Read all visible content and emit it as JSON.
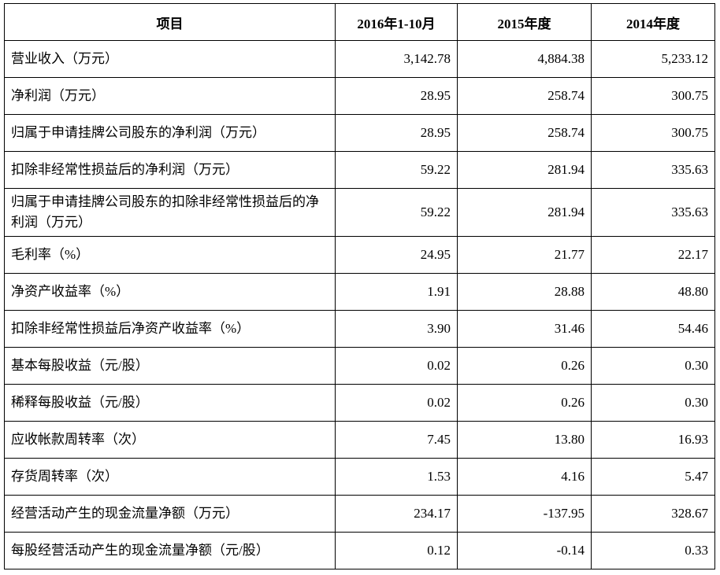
{
  "table": {
    "header": [
      "项目",
      "2016年1-10月",
      "2015年度",
      "2014年度"
    ],
    "rows": [
      [
        "营业收入（万元）",
        "3,142.78",
        "4,884.38",
        "5,233.12"
      ],
      [
        "净利润（万元）",
        "28.95",
        "258.74",
        "300.75"
      ],
      [
        "归属于申请挂牌公司股东的净利润（万元）",
        "28.95",
        "258.74",
        "300.75"
      ],
      [
        "扣除非经常性损益后的净利润（万元）",
        "59.22",
        "281.94",
        "335.63"
      ],
      [
        "归属于申请挂牌公司股东的扣除非经常性损益后的净利润（万元）",
        "59.22",
        "281.94",
        "335.63"
      ],
      [
        "毛利率（%）",
        "24.95",
        "21.77",
        "22.17"
      ],
      [
        "净资产收益率（%）",
        "1.91",
        "28.88",
        "48.80"
      ],
      [
        "扣除非经常性损益后净资产收益率（%）",
        "3.90",
        "31.46",
        "54.46"
      ],
      [
        "基本每股收益（元/股）",
        "0.02",
        "0.26",
        "0.30"
      ],
      [
        "稀释每股收益（元/股）",
        "0.02",
        "0.26",
        "0.30"
      ],
      [
        "应收帐款周转率（次）",
        "7.45",
        "13.80",
        "16.93"
      ],
      [
        "存货周转率（次）",
        "1.53",
        "4.16",
        "5.47"
      ],
      [
        "经营活动产生的现金流量净额（万元）",
        "234.17",
        "-137.95",
        "328.67"
      ],
      [
        "每股经营活动产生的现金流量净额（元/股）",
        "0.12",
        "-0.14",
        "0.33"
      ]
    ]
  }
}
